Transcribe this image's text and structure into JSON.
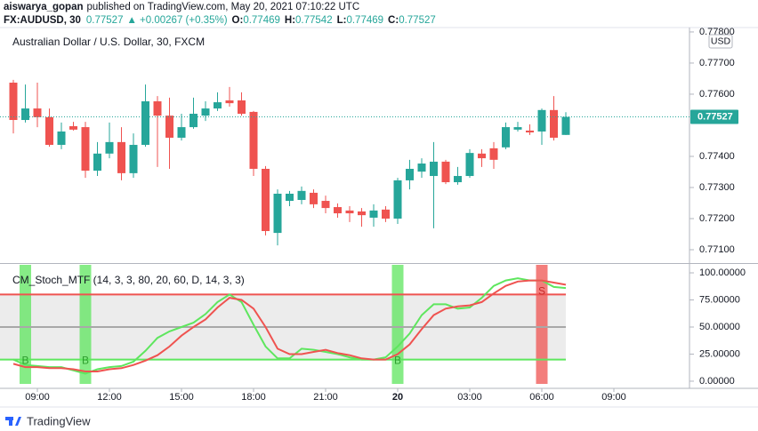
{
  "header": {
    "author": "aiswarya_gopan",
    "published": "published on TradingView.com, May 20, 2021 07:10:22 UTC",
    "symbol": "FX:AUDUSD, 30",
    "price": "0.77527",
    "change": "▲ +0.00267 (+0.35%)",
    "ohlc": [
      {
        "key": "O:",
        "value": "0.77469"
      },
      {
        "key": "H:",
        "value": "0.77542"
      },
      {
        "key": "L:",
        "value": "0.77469"
      },
      {
        "key": "C:",
        "value": "0.77527"
      }
    ]
  },
  "footer": {
    "brand": "TradingView"
  },
  "chart_data": [
    {
      "type": "candlestick",
      "title": "Australian Dollar / U.S. Dollar, 30, FXCM",
      "currency": "USD",
      "last_price_label": "0.77527",
      "up_color": "#26a69a",
      "down_color": "#ef5350",
      "x": [
        8,
        8.5,
        9,
        9.5,
        10,
        10.5,
        11,
        11.5,
        12,
        12.5,
        13,
        13.5,
        14,
        14.5,
        15,
        15.5,
        16,
        16.5,
        17,
        17.5,
        18,
        18.5,
        19,
        19.5,
        20,
        20.5,
        21,
        21.5,
        22,
        22.5,
        23,
        23.5,
        24,
        24.5,
        25,
        25.5,
        26,
        26.5,
        27,
        27.5,
        28,
        28.5,
        29,
        29.5,
        30,
        30.5,
        31
      ],
      "open": [
        0.77637,
        0.77517,
        0.77554,
        0.77526,
        0.77437,
        0.77497,
        0.77494,
        0.77354,
        0.77409,
        0.77446,
        0.77346,
        0.77437,
        0.77577,
        0.77531,
        0.7746,
        0.77494,
        0.77531,
        0.77554,
        0.7758,
        0.7758,
        0.77543,
        0.7736,
        0.77154,
        0.77257,
        0.7726,
        0.77283,
        0.77257,
        0.77237,
        0.77226,
        0.77223,
        0.77203,
        0.77229,
        0.772,
        0.77323,
        0.77351,
        0.77337,
        0.77383,
        0.77317,
        0.77337,
        0.77409,
        0.77426,
        0.77429,
        0.77486,
        0.77483,
        0.7748,
        0.77549,
        0.77469
      ],
      "high": [
        0.77646,
        0.77631,
        0.77637,
        0.77554,
        0.77509,
        0.77511,
        0.77511,
        0.77446,
        0.77509,
        0.77494,
        0.77474,
        0.77631,
        0.77594,
        0.77589,
        0.77537,
        0.77589,
        0.77577,
        0.77606,
        0.77623,
        0.77606,
        0.77546,
        0.77369,
        0.77294,
        0.77289,
        0.77303,
        0.77294,
        0.77274,
        0.77249,
        0.7724,
        0.77234,
        0.77246,
        0.7724,
        0.77331,
        0.77389,
        0.77394,
        0.77446,
        0.77389,
        0.77366,
        0.77423,
        0.77423,
        0.77446,
        0.77509,
        0.77511,
        0.77503,
        0.77554,
        0.77594,
        0.77542
      ],
      "low": [
        0.77474,
        0.77509,
        0.77494,
        0.77431,
        0.77423,
        0.77483,
        0.77331,
        0.77337,
        0.77394,
        0.77323,
        0.77331,
        0.77431,
        0.77366,
        0.7736,
        0.77451,
        0.77489,
        0.77514,
        0.77546,
        0.7756,
        0.77531,
        0.77337,
        0.77146,
        0.77114,
        0.7724,
        0.77246,
        0.77234,
        0.77217,
        0.77203,
        0.77189,
        0.77174,
        0.77174,
        0.77189,
        0.77183,
        0.77294,
        0.77331,
        0.77169,
        0.77311,
        0.77309,
        0.77331,
        0.77366,
        0.7736,
        0.77423,
        0.7748,
        0.77469,
        0.77437,
        0.77451,
        0.77469
      ],
      "close": [
        0.77517,
        0.77554,
        0.77526,
        0.77437,
        0.7748,
        0.77486,
        0.77354,
        0.77409,
        0.77446,
        0.77346,
        0.77437,
        0.77577,
        0.77531,
        0.7746,
        0.77494,
        0.77537,
        0.77554,
        0.77574,
        0.77571,
        0.77537,
        0.7736,
        0.7716,
        0.7728,
        0.7728,
        0.77289,
        0.77246,
        0.77234,
        0.77217,
        0.77217,
        0.77211,
        0.77226,
        0.772,
        0.77323,
        0.7736,
        0.77377,
        0.77383,
        0.77317,
        0.77337,
        0.77411,
        0.77394,
        0.77389,
        0.77494,
        0.77494,
        0.77477,
        0.77549,
        0.7746,
        0.77527
      ],
      "xlim": [
        7.5,
        36
      ],
      "ylim": [
        0.7706,
        0.77817
      ],
      "yticks": [
        {
          "value": 0.771,
          "label": "0.77100"
        },
        {
          "value": 0.772,
          "label": "0.77200"
        },
        {
          "value": 0.773,
          "label": "0.77300"
        },
        {
          "value": 0.774,
          "label": "0.77400"
        },
        {
          "value": 0.776,
          "label": "0.77600"
        },
        {
          "value": 0.777,
          "label": "0.77700"
        },
        {
          "value": 0.778,
          "label": "0.77800"
        }
      ]
    },
    {
      "type": "line",
      "title": "CM_Stoch_MTF (14, 3, 3, 80, 20, 60, D, 14, 3, 3)",
      "x": [
        8,
        8.5,
        9,
        9.5,
        10,
        10.5,
        11,
        11.5,
        12,
        12.5,
        13,
        13.5,
        14,
        14.5,
        15,
        15.5,
        16,
        16.5,
        17,
        17.5,
        18,
        18.5,
        19,
        19.5,
        20,
        20.5,
        21,
        21.5,
        22,
        22.5,
        23,
        23.5,
        24,
        24.5,
        25,
        25.5,
        26,
        26.5,
        27,
        27.5,
        28,
        28.5,
        29,
        29.5,
        30,
        30.5,
        31
      ],
      "series": [
        {
          "color": "#5ee65e",
          "values": [
            20,
            15,
            14,
            13,
            13,
            10,
            7,
            11,
            13,
            14,
            18,
            28,
            40,
            46,
            50,
            54,
            62,
            73,
            80,
            73,
            52,
            32,
            21,
            21,
            30,
            29,
            27,
            25,
            22,
            20,
            20,
            22,
            32,
            44,
            61,
            71,
            71,
            67,
            68,
            77,
            88,
            93,
            95,
            93,
            93,
            87,
            86
          ]
        },
        {
          "color": "#ef5350",
          "values": [
            16,
            13,
            13,
            12,
            12,
            11,
            9,
            9,
            11,
            12,
            15,
            19,
            24,
            32,
            42,
            50,
            57,
            68,
            77,
            75,
            67,
            50,
            30,
            25,
            25,
            27,
            29,
            26,
            24,
            21,
            20,
            20,
            25,
            34,
            48,
            61,
            67,
            69,
            70,
            73,
            81,
            88,
            92,
            93,
            93,
            91,
            89
          ]
        }
      ],
      "levels": [
        {
          "value": 80,
          "color": "#ef5350"
        },
        {
          "value": 50,
          "color": "#a8a8a8"
        },
        {
          "value": 20,
          "color": "#5ee65e"
        }
      ],
      "band_color": "#ececec",
      "signals": [
        {
          "x": 8.5,
          "label": "B",
          "color": "#5ee65e",
          "position": "bottom"
        },
        {
          "x": 11,
          "label": "B",
          "color": "#5ee65e",
          "position": "bottom"
        },
        {
          "x": 24,
          "label": "B",
          "color": "#5ee65e",
          "position": "bottom"
        },
        {
          "x": 30,
          "label": "S",
          "color": "#ef5350",
          "position": "top"
        }
      ],
      "xlim": [
        7.5,
        36
      ],
      "ylim": [
        -6.6,
        107.4
      ],
      "yticks": [
        {
          "value": 0,
          "label": "0.00000"
        },
        {
          "value": 25,
          "label": "25.00000"
        },
        {
          "value": 50,
          "label": "50.00000"
        },
        {
          "value": 75,
          "label": "75.00000"
        },
        {
          "value": 100,
          "label": "100.00000"
        }
      ],
      "xticks": [
        {
          "value": 9,
          "label": "09:00"
        },
        {
          "value": 12,
          "label": "12:00"
        },
        {
          "value": 15,
          "label": "15:00"
        },
        {
          "value": 18,
          "label": "18:00"
        },
        {
          "value": 21,
          "label": "21:00"
        },
        {
          "value": 24,
          "label": "20"
        },
        {
          "value": 27,
          "label": "03:00"
        },
        {
          "value": 30,
          "label": "06:00"
        },
        {
          "value": 33,
          "label": "09:00"
        }
      ]
    }
  ]
}
